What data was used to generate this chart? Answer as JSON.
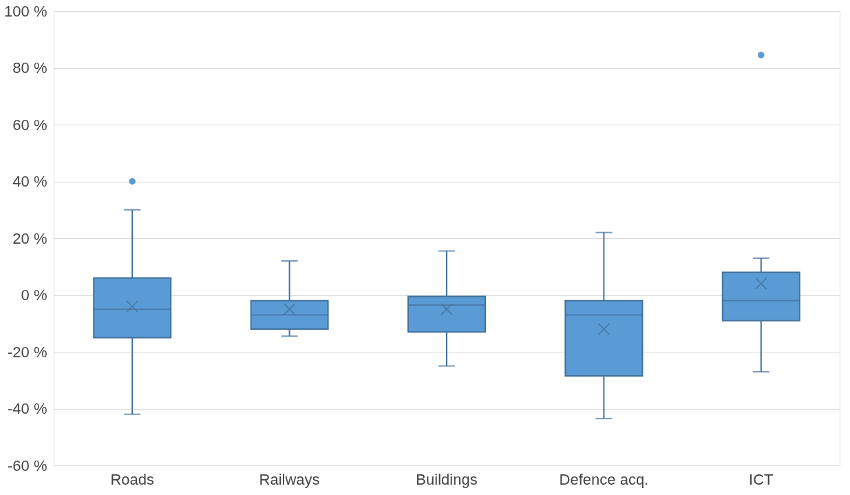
{
  "chart_data": {
    "type": "box",
    "categories": [
      "Roads",
      "Railways",
      "Buildings",
      "Defence acq.",
      "ICT"
    ],
    "series": [
      {
        "color": "#5b9bd5",
        "boxes": [
          {
            "low": -42,
            "q1": -15,
            "median": -5,
            "q3": 6,
            "high": 30,
            "mean": -4,
            "outliers": [
              40
            ]
          },
          {
            "low": -14.5,
            "q1": -12,
            "median": -7,
            "q3": -2,
            "high": 12,
            "mean": -5
          },
          {
            "low": -25,
            "q1": -13,
            "median": -3.5,
            "q3": -0.5,
            "high": 15.5,
            "mean": -5
          },
          {
            "low": -43.5,
            "q1": -28.5,
            "median": -7,
            "q3": -2,
            "high": 22,
            "mean": -12
          },
          {
            "low": -27,
            "q1": -9,
            "median": -2,
            "q3": 8,
            "high": 13,
            "mean": 4,
            "outliers": [
              84.5
            ]
          }
        ]
      }
    ],
    "ylim": [
      -60,
      100
    ],
    "yticks": [
      {
        "value": -60,
        "label": "-60 %"
      },
      {
        "value": -40,
        "label": "-40 %"
      },
      {
        "value": -20,
        "label": "-20 %"
      },
      {
        "value": 0,
        "label": "0 %"
      },
      {
        "value": 20,
        "label": "20 %"
      },
      {
        "value": 40,
        "label": "40 %"
      },
      {
        "value": 60,
        "label": "60 %"
      },
      {
        "value": 80,
        "label": "80 %"
      },
      {
        "value": 100,
        "label": "100 %"
      }
    ],
    "grid": "y"
  }
}
